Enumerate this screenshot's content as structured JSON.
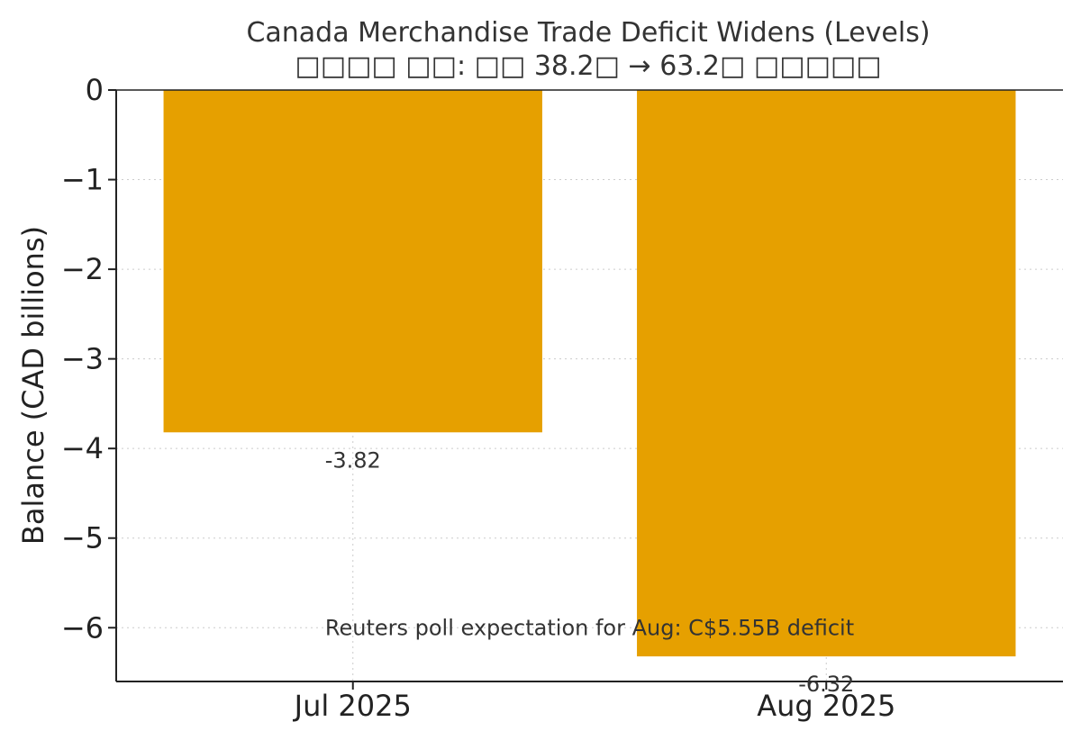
{
  "chart_data": {
    "type": "bar",
    "title": "Canada Merchandise Trade Deficit Widens (Levels)",
    "subtitle": "□□□□ □□: □□ 38.2□ → 63.2□ □□□□□",
    "ylabel": "Balance (CAD billions)",
    "xlabel": "",
    "categories": [
      "Jul 2025",
      "Aug 2025"
    ],
    "values": [
      -3.82,
      -6.32
    ],
    "value_labels": [
      "-3.82",
      "-6.32"
    ],
    "ylim": [
      -6.6,
      0
    ],
    "yticks": [
      0,
      -1,
      -2,
      -3,
      -4,
      -5,
      -6
    ],
    "ytick_labels": [
      "0",
      "−1",
      "−2",
      "−3",
      "−4",
      "−5",
      "−6"
    ],
    "annotation": {
      "text": "Reuters poll expectation for Aug: C$5.55B deficit",
      "x": 0.5,
      "y": -6.0
    },
    "grid": true,
    "bar_color": "#E6A000"
  }
}
